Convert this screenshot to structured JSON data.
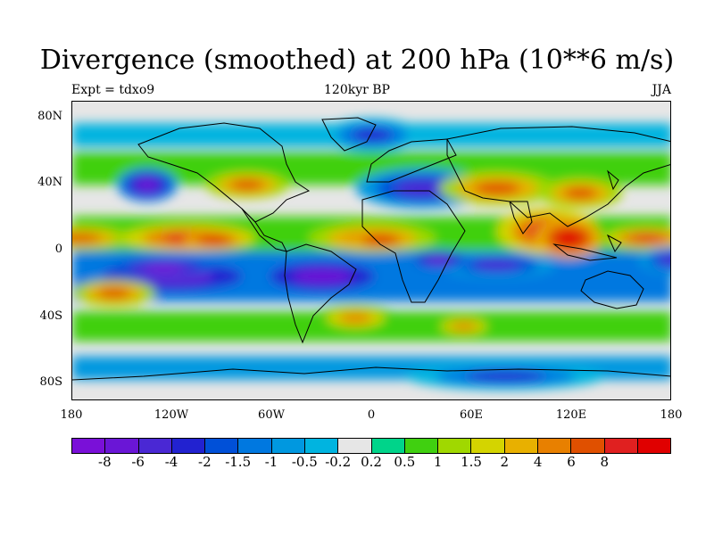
{
  "title": "Divergence (smoothed) at 200 hPa (10**6 m/s)",
  "experiment_label": "Expt = tdxo9",
  "time_label": "120kyr BP",
  "season_label": "JJA",
  "lat_ticks": [
    {
      "value": 80,
      "label": "80N"
    },
    {
      "value": 40,
      "label": "40N"
    },
    {
      "value": 0,
      "label": "0"
    },
    {
      "value": -40,
      "label": "40S"
    },
    {
      "value": -80,
      "label": "80S"
    }
  ],
  "lon_ticks": [
    {
      "value": -180,
      "label": "180"
    },
    {
      "value": -120,
      "label": "120W"
    },
    {
      "value": -60,
      "label": "60W"
    },
    {
      "value": 0,
      "label": "0"
    },
    {
      "value": 60,
      "label": "60E"
    },
    {
      "value": 120,
      "label": "120E"
    },
    {
      "value": 180,
      "label": "180"
    }
  ],
  "map_extent": {
    "lon": [
      -180,
      180
    ],
    "lat": [
      -90,
      90
    ]
  },
  "colorbar": {
    "colors": [
      "#7a10d8",
      "#6a16d6",
      "#4a28d4",
      "#2222d0",
      "#0050d8",
      "#0078e0",
      "#0098e0",
      "#00b4e0",
      "#e6e6e6",
      "#00d48a",
      "#40d010",
      "#a0d800",
      "#d4d400",
      "#e8b000",
      "#e88000",
      "#e05000",
      "#e02020",
      "#e00000"
    ],
    "labels": [
      "-8",
      "-6",
      "-4",
      "-2",
      "-1.5",
      "-1",
      "-0.5",
      "-0.2",
      "0.2",
      "0.5",
      "1",
      "1.5",
      "2",
      "4",
      "6",
      "8"
    ]
  },
  "field_blobs": [
    {
      "lon": -175,
      "lat": 8,
      "rx": 30,
      "ry": 7,
      "level": 2
    },
    {
      "lon": -110,
      "lat": 8,
      "rx": 40,
      "ry": 8,
      "level": 1
    },
    {
      "lon": -95,
      "lat": 7,
      "rx": 18,
      "ry": 5,
      "level": 0
    },
    {
      "lon": 0,
      "lat": 8,
      "rx": 38,
      "ry": 9,
      "level": 2
    },
    {
      "lon": 5,
      "lat": 7,
      "rx": 18,
      "ry": 5,
      "level": 0
    },
    {
      "lon": 105,
      "lat": 12,
      "rx": 30,
      "ry": 14,
      "level": 1
    },
    {
      "lon": 118,
      "lat": 8,
      "rx": 20,
      "ry": 12,
      "level": 0
    },
    {
      "lon": 165,
      "lat": 8,
      "rx": 25,
      "ry": 6,
      "level": 1
    },
    {
      "lon": 75,
      "lat": 38,
      "rx": 35,
      "ry": 10,
      "level": 2
    },
    {
      "lon": 125,
      "lat": 35,
      "rx": 25,
      "ry": 9,
      "level": 2
    },
    {
      "lon": -75,
      "lat": 40,
      "rx": 25,
      "ry": 8,
      "level": 2
    },
    {
      "lon": -155,
      "lat": -25,
      "rx": 25,
      "ry": 8,
      "level": 2
    },
    {
      "lon": 55,
      "lat": -45,
      "rx": 20,
      "ry": 6,
      "level": 3
    },
    {
      "lon": -10,
      "lat": -40,
      "rx": 25,
      "ry": 8,
      "level": 3
    }
  ],
  "neg_blobs": [
    {
      "lon": -120,
      "lat": -15,
      "rx": 60,
      "ry": 12,
      "level": 1
    },
    {
      "lon": -125,
      "lat": -10,
      "rx": 30,
      "ry": 6,
      "level": 0
    },
    {
      "lon": -30,
      "lat": -15,
      "rx": 45,
      "ry": 12,
      "level": 1
    },
    {
      "lon": 75,
      "lat": -8,
      "rx": 35,
      "ry": 8,
      "level": 2
    },
    {
      "lon": -135,
      "lat": 40,
      "rx": 18,
      "ry": 10,
      "level": 1
    },
    {
      "lon": 30,
      "lat": 38,
      "rx": 40,
      "ry": 12,
      "level": 2
    },
    {
      "lon": 40,
      "lat": -5,
      "rx": 20,
      "ry": 6,
      "level": 1
    },
    {
      "lon": 180,
      "lat": -5,
      "rx": 20,
      "ry": 8,
      "level": 2
    },
    {
      "lon": 0,
      "lat": 70,
      "rx": 30,
      "ry": 10,
      "level": 3
    },
    {
      "lon": 80,
      "lat": -75,
      "rx": 60,
      "ry": 8,
      "level": 3
    }
  ]
}
